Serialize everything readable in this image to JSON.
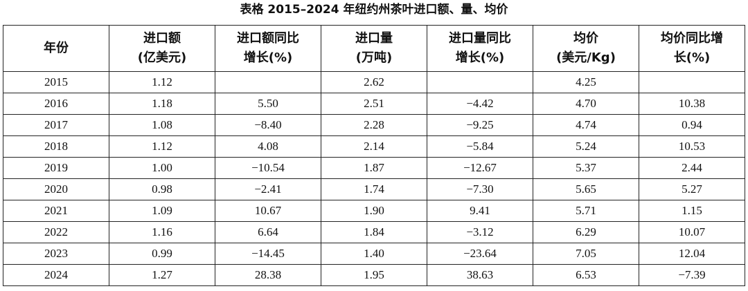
{
  "title": "表格  2015–2024 年纽约州茶叶进口额、量、均价",
  "table": {
    "header": [
      [
        "年份"
      ],
      [
        "进口额",
        "(亿美元)"
      ],
      [
        "进口额同比",
        "增长(%)"
      ],
      [
        "进口量",
        "(万吨)"
      ],
      [
        "进口量同比",
        "增长(%)"
      ],
      [
        "均价",
        "(美元/Kg)"
      ],
      [
        "均价同比增",
        "长(%)"
      ]
    ],
    "rows": [
      [
        "2015",
        "1.12",
        null,
        "2.62",
        null,
        "4.25",
        null
      ],
      [
        "2016",
        "1.18",
        "5.50",
        "2.51",
        "−4.42",
        "4.70",
        "10.38"
      ],
      [
        "2017",
        "1.08",
        "−8.40",
        "2.28",
        "−9.25",
        "4.74",
        "0.94"
      ],
      [
        "2018",
        "1.12",
        "4.08",
        "2.14",
        "−5.84",
        "5.24",
        "10.53"
      ],
      [
        "2019",
        "1.00",
        "−10.54",
        "1.87",
        "−12.67",
        "5.37",
        "2.44"
      ],
      [
        "2020",
        "0.98",
        "−2.41",
        "1.74",
        "−7.30",
        "5.65",
        "5.27"
      ],
      [
        "2021",
        "1.09",
        "10.67",
        "1.90",
        "9.41",
        "5.71",
        "1.15"
      ],
      [
        "2022",
        "1.16",
        "6.64",
        "1.84",
        "−3.12",
        "6.29",
        "10.07"
      ],
      [
        "2023",
        "0.99",
        "−14.45",
        "1.40",
        "−23.64",
        "7.05",
        "12.04"
      ],
      [
        "2024",
        "1.27",
        "28.38",
        "1.95",
        "38.63",
        "6.53",
        "−7.39"
      ]
    ]
  }
}
